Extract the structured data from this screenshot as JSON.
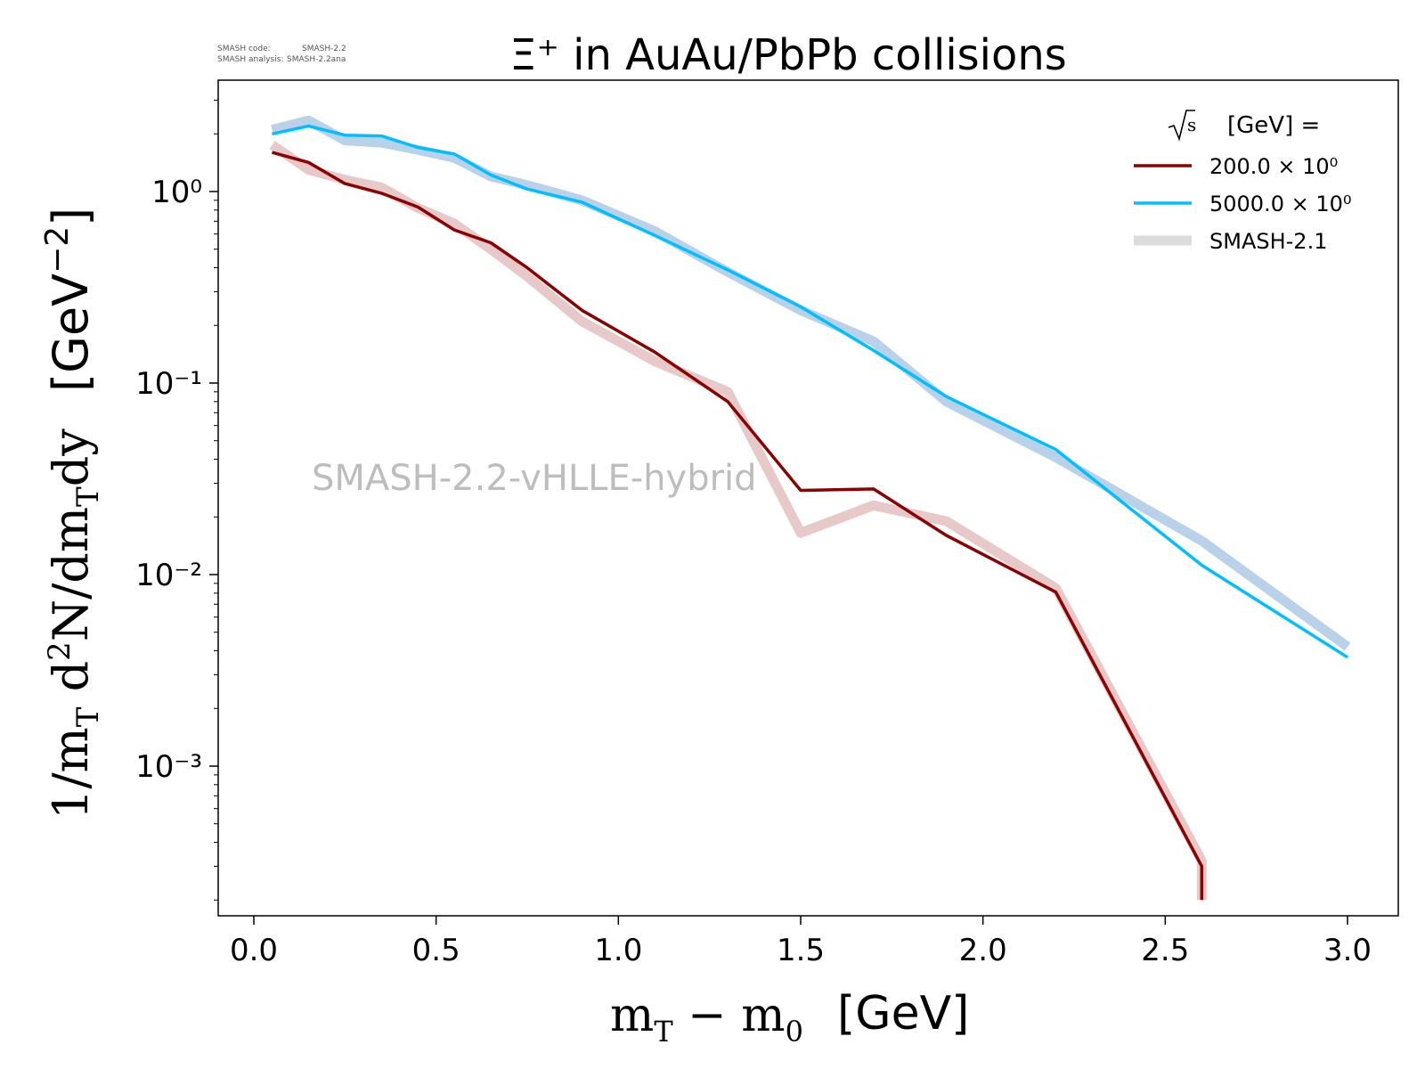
{
  "meta": {
    "code_label": "SMASH code:",
    "code_value": "SMASH-2.2",
    "analysis_label": "SMASH analysis:",
    "analysis_value": "SMASH-2.2ana"
  },
  "watermark": "SMASH-2.2-vHLLE-hybrid",
  "legend": {
    "title_text": "[GeV] =",
    "entries": [
      "200.0 × 10⁰",
      "5000.0 × 10⁰",
      "SMASH-2.1"
    ]
  },
  "colors": {
    "dark_red": "#8b0000",
    "light_blue": "#00bfff",
    "ref_red": "#e8c9c9",
    "ref_blue": "#b9d2e9",
    "legend_ref": "#dcdcdc",
    "watermark": "#bdbdbd"
  },
  "chart_data": {
    "type": "line",
    "title": "Ξ⁺ in AuAu/PbPb collisions",
    "xlabel": "m_T − m_0 [GeV]",
    "ylabel": "1/m_T d²N/dm_Tdy [GeV⁻²]",
    "xlim": [
      -0.1,
      3.15
    ],
    "ylim": [
      0.0002,
      3.5
    ],
    "yscale": "log",
    "xticks": [
      "0.0",
      "0.5",
      "1.0",
      "1.5",
      "2.0",
      "2.5",
      "3.0"
    ],
    "yticks": [
      "10⁰",
      "10⁻¹",
      "10⁻²",
      "10⁻³"
    ],
    "legend_position": "top-right",
    "grid": false,
    "series": [
      {
        "name": "SMASH-2.1",
        "reference": true,
        "color": "#e8c9c9",
        "x": [
          0.05,
          0.15,
          0.25,
          0.35,
          0.45,
          0.55,
          0.65,
          0.75,
          0.9,
          1.1,
          1.3,
          1.5,
          1.7,
          1.9,
          2.2,
          2.6,
          2.6
        ],
        "y": [
          1.75,
          1.3,
          1.15,
          1.05,
          0.82,
          0.68,
          0.5,
          0.36,
          0.21,
          0.13,
          0.09,
          0.0165,
          0.023,
          0.019,
          0.0085,
          0.00032,
          0.0002
        ]
      },
      {
        "name": "SMASH-2.1",
        "reference": true,
        "color": "#b9d2e9",
        "x": [
          0.05,
          0.15,
          0.25,
          0.35,
          0.45,
          0.55,
          0.65,
          0.75,
          0.9,
          1.1,
          1.3,
          1.5,
          1.7,
          1.9,
          2.2,
          2.6,
          3.0
        ],
        "y": [
          2.1,
          2.35,
          1.85,
          1.8,
          1.65,
          1.5,
          1.2,
          1.08,
          0.9,
          0.62,
          0.38,
          0.24,
          0.165,
          0.08,
          0.041,
          0.015,
          0.0042
        ]
      },
      {
        "name": "200.0 × 10⁰",
        "color": "#8b0000",
        "x": [
          0.05,
          0.15,
          0.25,
          0.35,
          0.45,
          0.55,
          0.65,
          0.75,
          0.9,
          1.1,
          1.3,
          1.5,
          1.7,
          1.9,
          2.2,
          2.6,
          2.6
        ],
        "y": [
          1.6,
          1.42,
          1.1,
          0.98,
          0.83,
          0.63,
          0.54,
          0.4,
          0.24,
          0.145,
          0.08,
          0.0275,
          0.028,
          0.016,
          0.0081,
          0.0003,
          0.0002
        ]
      },
      {
        "name": "5000.0 × 10⁰",
        "color": "#00bfff",
        "x": [
          0.05,
          0.15,
          0.25,
          0.35,
          0.45,
          0.55,
          0.65,
          0.75,
          0.9,
          1.1,
          1.3,
          1.5,
          1.7,
          1.9,
          2.2,
          2.6,
          3.0
        ],
        "y": [
          2.0,
          2.2,
          1.97,
          1.95,
          1.7,
          1.57,
          1.22,
          1.03,
          0.88,
          0.59,
          0.39,
          0.25,
          0.148,
          0.085,
          0.045,
          0.0112,
          0.0037
        ]
      }
    ]
  }
}
